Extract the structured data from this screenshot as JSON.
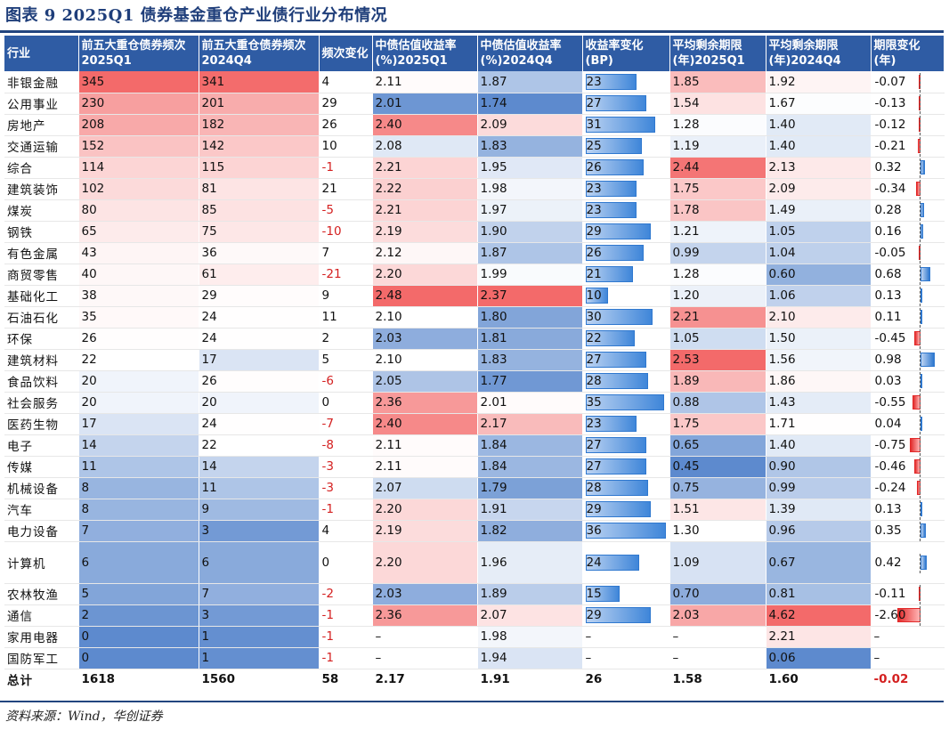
{
  "title": "图表 9   2025Q1 债券基金重仓产业债行业分布情况",
  "source": "资料来源：Wind，华创证券",
  "headers": [
    "行业",
    "前五大重仓债券频次2025Q1",
    "前五大重仓债券频次2024Q4",
    "频次变化",
    "中债估值收益率(%)2025Q1",
    "中债估值收益率(%)2024Q4",
    "收益率变化(BP)",
    "平均剩余期限(年)2025Q1",
    "平均剩余期限(年)2024Q4",
    "期限变化(年)"
  ],
  "colors": {
    "header_bg": "#2f5ca4",
    "title": "#1f3e7a",
    "negative_text": "#d42020"
  },
  "rows": [
    {
      "ind": "非银金融",
      "f1": "345",
      "f2": "341",
      "df": "4",
      "y1": "2.11",
      "y2": "1.87",
      "bp": "23",
      "m1": "1.85",
      "m2": "1.92",
      "dm": "-0.07"
    },
    {
      "ind": "公用事业",
      "f1": "230",
      "f2": "201",
      "df": "29",
      "y1": "2.01",
      "y2": "1.74",
      "bp": "27",
      "m1": "1.54",
      "m2": "1.67",
      "dm": "-0.13"
    },
    {
      "ind": "房地产",
      "f1": "208",
      "f2": "182",
      "df": "26",
      "y1": "2.40",
      "y2": "2.09",
      "bp": "31",
      "m1": "1.28",
      "m2": "1.40",
      "dm": "-0.12"
    },
    {
      "ind": "交通运输",
      "f1": "152",
      "f2": "142",
      "df": "10",
      "y1": "2.08",
      "y2": "1.83",
      "bp": "25",
      "m1": "1.19",
      "m2": "1.40",
      "dm": "-0.21"
    },
    {
      "ind": "综合",
      "f1": "114",
      "f2": "115",
      "df": "-1",
      "y1": "2.21",
      "y2": "1.95",
      "bp": "26",
      "m1": "2.44",
      "m2": "2.13",
      "dm": "0.32"
    },
    {
      "ind": "建筑装饰",
      "f1": "102",
      "f2": "81",
      "df": "21",
      "y1": "2.22",
      "y2": "1.98",
      "bp": "23",
      "m1": "1.75",
      "m2": "2.09",
      "dm": "-0.34"
    },
    {
      "ind": "煤炭",
      "f1": "80",
      "f2": "85",
      "df": "-5",
      "y1": "2.21",
      "y2": "1.97",
      "bp": "23",
      "m1": "1.78",
      "m2": "1.49",
      "dm": "0.28"
    },
    {
      "ind": "钢铁",
      "f1": "65",
      "f2": "75",
      "df": "-10",
      "y1": "2.19",
      "y2": "1.90",
      "bp": "29",
      "m1": "1.21",
      "m2": "1.05",
      "dm": "0.16"
    },
    {
      "ind": "有色金属",
      "f1": "43",
      "f2": "36",
      "df": "7",
      "y1": "2.12",
      "y2": "1.87",
      "bp": "26",
      "m1": "0.99",
      "m2": "1.04",
      "dm": "-0.05"
    },
    {
      "ind": "商贸零售",
      "f1": "40",
      "f2": "61",
      "df": "-21",
      "y1": "2.20",
      "y2": "1.99",
      "bp": "21",
      "m1": "1.28",
      "m2": "0.60",
      "dm": "0.68"
    },
    {
      "ind": "基础化工",
      "f1": "38",
      "f2": "29",
      "df": "9",
      "y1": "2.48",
      "y2": "2.37",
      "bp": "10",
      "m1": "1.20",
      "m2": "1.06",
      "dm": "0.13"
    },
    {
      "ind": "石油石化",
      "f1": "35",
      "f2": "24",
      "df": "11",
      "y1": "2.10",
      "y2": "1.80",
      "bp": "30",
      "m1": "2.21",
      "m2": "2.10",
      "dm": "0.11"
    },
    {
      "ind": "环保",
      "f1": "26",
      "f2": "24",
      "df": "2",
      "y1": "2.03",
      "y2": "1.81",
      "bp": "22",
      "m1": "1.05",
      "m2": "1.50",
      "dm": "-0.45"
    },
    {
      "ind": "建筑材料",
      "f1": "22",
      "f2": "17",
      "df": "5",
      "y1": "2.10",
      "y2": "1.83",
      "bp": "27",
      "m1": "2.53",
      "m2": "1.56",
      "dm": "0.98"
    },
    {
      "ind": "食品饮料",
      "f1": "20",
      "f2": "26",
      "df": "-6",
      "y1": "2.05",
      "y2": "1.77",
      "bp": "28",
      "m1": "1.89",
      "m2": "1.86",
      "dm": "0.03"
    },
    {
      "ind": "社会服务",
      "f1": "20",
      "f2": "20",
      "df": "0",
      "y1": "2.36",
      "y2": "2.01",
      "bp": "35",
      "m1": "0.88",
      "m2": "1.43",
      "dm": "-0.55"
    },
    {
      "ind": "医药生物",
      "f1": "17",
      "f2": "24",
      "df": "-7",
      "y1": "2.40",
      "y2": "2.17",
      "bp": "23",
      "m1": "1.75",
      "m2": "1.71",
      "dm": "0.04"
    },
    {
      "ind": "电子",
      "f1": "14",
      "f2": "22",
      "df": "-8",
      "y1": "2.11",
      "y2": "1.84",
      "bp": "27",
      "m1": "0.65",
      "m2": "1.40",
      "dm": "-0.75"
    },
    {
      "ind": "传媒",
      "f1": "11",
      "f2": "14",
      "df": "-3",
      "y1": "2.11",
      "y2": "1.84",
      "bp": "27",
      "m1": "0.45",
      "m2": "0.90",
      "dm": "-0.46"
    },
    {
      "ind": "机械设备",
      "f1": "8",
      "f2": "11",
      "df": "-3",
      "y1": "2.07",
      "y2": "1.79",
      "bp": "28",
      "m1": "0.75",
      "m2": "0.99",
      "dm": "-0.24"
    },
    {
      "ind": "汽车",
      "f1": "8",
      "f2": "9",
      "df": "-1",
      "y1": "2.20",
      "y2": "1.91",
      "bp": "29",
      "m1": "1.51",
      "m2": "1.39",
      "dm": "0.13"
    },
    {
      "ind": "电力设备",
      "f1": "7",
      "f2": "3",
      "df": "4",
      "y1": "2.19",
      "y2": "1.82",
      "bp": "36",
      "m1": "1.30",
      "m2": "0.96",
      "dm": "0.35"
    },
    {
      "ind": "计算机",
      "f1": "6",
      "f2": "6",
      "df": "0",
      "y1": "2.20",
      "y2": "1.96",
      "bp": "24",
      "m1": "1.09",
      "m2": "0.67",
      "dm": "0.42",
      "tall": true
    },
    {
      "ind": "农林牧渔",
      "f1": "5",
      "f2": "7",
      "df": "-2",
      "y1": "2.03",
      "y2": "1.89",
      "bp": "15",
      "m1": "0.70",
      "m2": "0.81",
      "dm": "-0.11"
    },
    {
      "ind": "通信",
      "f1": "2",
      "f2": "3",
      "df": "-1",
      "y1": "2.36",
      "y2": "2.07",
      "bp": "29",
      "m1": "2.03",
      "m2": "4.62",
      "dm": "-2.60"
    },
    {
      "ind": "家用电器",
      "f1": "0",
      "f2": "1",
      "df": "-1",
      "y1": "–",
      "y2": "1.98",
      "bp": "–",
      "m1": "–",
      "m2": "2.21",
      "dm": "–"
    },
    {
      "ind": "国防军工",
      "f1": "0",
      "f2": "1",
      "df": "-1",
      "y1": "–",
      "y2": "1.94",
      "bp": "–",
      "m1": "–",
      "m2": "0.06",
      "dm": "–"
    }
  ],
  "total": {
    "ind": "总计",
    "f1": "1618",
    "f2": "1560",
    "df": "58",
    "y1": "2.17",
    "y2": "1.91",
    "bp": "26",
    "m1": "1.58",
    "m2": "1.60",
    "dm": "-0.02"
  }
}
